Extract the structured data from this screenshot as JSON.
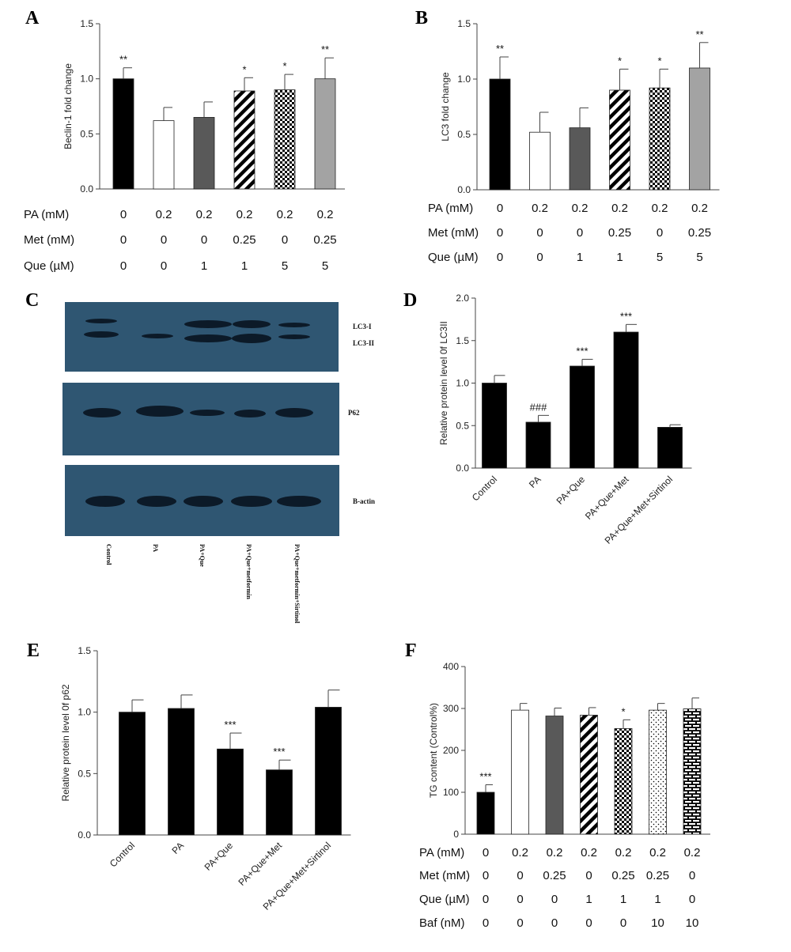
{
  "panel_letters": [
    "A",
    "B",
    "C",
    "D",
    "E",
    "F"
  ],
  "chart_data": [
    {
      "id": "A",
      "type": "bar",
      "ylabel": "Beclin-1 fold change",
      "ylim": [
        0,
        1.5
      ],
      "yticks": [
        "0.0",
        "0.5",
        "1.0",
        "1.5"
      ],
      "values": [
        1.0,
        0.62,
        0.65,
        0.89,
        0.9,
        1.0
      ],
      "errors": [
        0.1,
        0.12,
        0.14,
        0.12,
        0.14,
        0.19
      ],
      "significance": [
        "**",
        "",
        "",
        "*",
        "*",
        "**"
      ],
      "fills": [
        "black",
        "white",
        "dark",
        "diag",
        "checker",
        "gray"
      ],
      "condition_rows": [
        {
          "label": "PA (mM)",
          "values": [
            "0",
            "0.2",
            "0.2",
            "0.2",
            "0.2",
            "0.2"
          ]
        },
        {
          "label": "Met (mM)",
          "values": [
            "0",
            "0",
            "0",
            "0.25",
            "0",
            "0.25"
          ]
        },
        {
          "label": "Que (µM)",
          "values": [
            "0",
            "0",
            "1",
            "1",
            "5",
            "5"
          ]
        }
      ]
    },
    {
      "id": "B",
      "type": "bar",
      "ylabel": "LC3 fold change",
      "ylim": [
        0,
        1.5
      ],
      "yticks": [
        "0.0",
        "0.5",
        "1.0",
        "1.5"
      ],
      "values": [
        1.0,
        0.52,
        0.56,
        0.9,
        0.92,
        1.1
      ],
      "errors": [
        0.2,
        0.18,
        0.18,
        0.19,
        0.17,
        0.23
      ],
      "significance": [
        "**",
        "",
        "",
        "*",
        "*",
        "**"
      ],
      "fills": [
        "black",
        "white",
        "dark",
        "diag",
        "checker",
        "gray"
      ],
      "condition_rows": [
        {
          "label": "PA (mM)",
          "values": [
            "0",
            "0.2",
            "0.2",
            "0.2",
            "0.2",
            "0.2"
          ]
        },
        {
          "label": "Met (mM)",
          "values": [
            "0",
            "0",
            "0",
            "0.25",
            "0",
            "0.25"
          ]
        },
        {
          "label": "Que (µM)",
          "values": [
            "0",
            "0",
            "1",
            "1",
            "5",
            "5"
          ]
        }
      ]
    },
    {
      "id": "D",
      "type": "bar",
      "ylabel": "Relative protein level 0f LC3II",
      "ylim": [
        0,
        2.0
      ],
      "yticks": [
        "0.0",
        "0.5",
        "1.0",
        "1.5",
        "2.0"
      ],
      "categories": [
        "Control",
        "PA",
        "PA+Que",
        "PA+Que+Met",
        "PA+Que+Met+Sirtinol"
      ],
      "values": [
        1.0,
        0.54,
        1.2,
        1.6,
        0.48
      ],
      "errors": [
        0.09,
        0.08,
        0.08,
        0.09,
        0.03
      ],
      "significance": [
        "",
        "###",
        "***",
        "***",
        ""
      ],
      "fills": [
        "black",
        "black",
        "black",
        "black",
        "black"
      ]
    },
    {
      "id": "E",
      "type": "bar",
      "ylabel": "Relative protein level 0f p62",
      "ylim": [
        0,
        1.5
      ],
      "yticks": [
        "0.0",
        "0.5",
        "1.0",
        "1.5"
      ],
      "categories": [
        "Control",
        "PA",
        "PA+Que",
        "PA+Que+Met",
        "PA+Que+Met+Sirtinol"
      ],
      "values": [
        1.0,
        1.03,
        0.7,
        0.53,
        1.04
      ],
      "errors": [
        0.1,
        0.11,
        0.13,
        0.08,
        0.14
      ],
      "significance": [
        "",
        "",
        "***",
        "***",
        ""
      ],
      "fills": [
        "black",
        "black",
        "black",
        "black",
        "black"
      ]
    },
    {
      "id": "F",
      "type": "bar",
      "ylabel": "TG content (Control%)",
      "ylim": [
        0,
        400
      ],
      "yticks": [
        "0",
        "100",
        "200",
        "300",
        "400"
      ],
      "values": [
        100,
        296,
        282,
        284,
        252,
        296,
        299
      ],
      "errors": [
        18,
        16,
        19,
        18,
        21,
        16,
        26
      ],
      "significance": [
        "***",
        "",
        "",
        "",
        "*",
        "",
        ""
      ],
      "fills": [
        "black",
        "white",
        "dark",
        "diag",
        "checker",
        "dots",
        "brick"
      ],
      "condition_rows": [
        {
          "label": "PA (mM)",
          "values": [
            "0",
            "0.2",
            "0.2",
            "0.2",
            "0.2",
            "0.2",
            "0.2"
          ]
        },
        {
          "label": "Met (mM)",
          "values": [
            "0",
            "0",
            "0.25",
            "0",
            "0.25",
            "0.25",
            "0"
          ]
        },
        {
          "label": "Que (µM)",
          "values": [
            "0",
            "0",
            "0",
            "1",
            "1",
            "1",
            "0"
          ]
        },
        {
          "label": "Baf (nM)",
          "values": [
            "0",
            "0",
            "0",
            "0",
            "0",
            "10",
            "10"
          ]
        }
      ]
    }
  ],
  "blot": {
    "lane_labels": [
      "Control",
      "PA",
      "PA+Que",
      "PA+Que+metformin",
      "PA+Que+metformin+Sirtinol"
    ],
    "band_labels": [
      "LC3-I",
      "LC3-II",
      "P62",
      "B-actin"
    ],
    "background_color": "#2f5672",
    "band_color": "#0c1a28"
  }
}
